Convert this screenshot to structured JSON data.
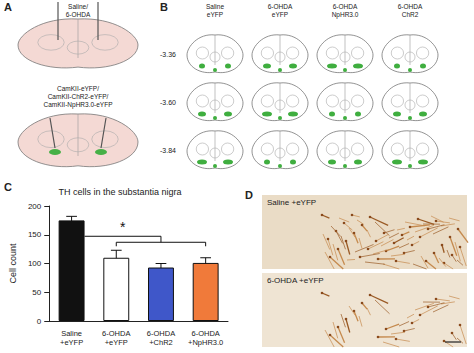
{
  "panel_labels": [
    "A",
    "B",
    "C",
    "D"
  ],
  "panel_A": {
    "injection_top": [
      "Saline/",
      "6-OHDA"
    ],
    "injection_bottom": [
      "CamKII-eYFP/",
      "CamKII-ChR2-eYFP/",
      "CamKII-NpHR3.0-eYFP"
    ]
  },
  "panel_B": {
    "columns": [
      [
        "Saline",
        "eYFP"
      ],
      [
        "6-OHDA",
        "eYFP"
      ],
      [
        "6-OHDA",
        "NpHR3.0"
      ],
      [
        "6-OHDA",
        "ChR2"
      ]
    ],
    "rows": [
      "-3.36",
      "-3.60",
      "-3.84"
    ]
  },
  "chart_data": {
    "type": "bar",
    "title": "TH cells in the substantia nigra",
    "y_label": "Cell count",
    "categories": [
      "Saline\n+eYFP",
      "6-OHDA\n+eYFP",
      "6-OHDA\n+ChR2",
      "6-OHDA\n+NpHR3.0"
    ],
    "values": [
      175,
      110,
      93,
      101
    ],
    "errors": [
      7,
      13,
      7,
      9
    ],
    "colors": [
      "#111111",
      "#ffffff",
      "#3f57c9",
      "#f07a3a"
    ],
    "ylim": [
      0,
      200
    ],
    "yticks": [
      0,
      50,
      100,
      150,
      200
    ],
    "grid": false,
    "annotation": "*"
  },
  "panel_D": {
    "images": [
      "Saline +eYFP",
      "6-OHDA +eYFP"
    ]
  }
}
